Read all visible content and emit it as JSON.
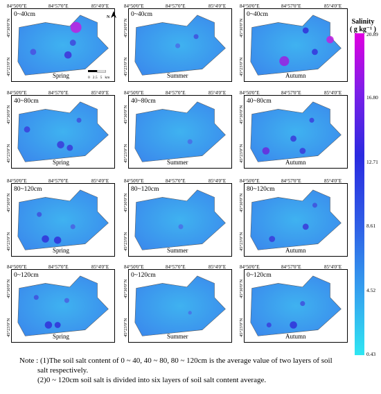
{
  "coord_labels": {
    "lon_left": "84°50'0\"E",
    "lon_mid": "84°57'0\"E",
    "lon_right": "85°4'0\"E",
    "lat_top": "45°30'0\"N",
    "lat_bottom": "45°23'0\"N"
  },
  "depths": [
    "0~40cm",
    "40~80cm",
    "80~120cm",
    "0~120cm"
  ],
  "seasons": [
    "Spring",
    "Summer",
    "Autumn"
  ],
  "north_arrow": "N",
  "scalebar": {
    "ticks": [
      "0",
      "2.5",
      "5"
    ],
    "unit": "km"
  },
  "legend": {
    "title": "Salinity",
    "unit": "( g kg⁻¹ )",
    "ticks": [
      "20.89",
      "16.80",
      "12.71",
      "8.61",
      "4.52",
      "0.43"
    ],
    "color_top": "#e000e0",
    "color_bottom": "#2fe6f2"
  },
  "note": {
    "line1": "Note : (1)The soil salt content of 0 ~ 40, 40 ~ 80, 80 ~ 120cm is the average value of two layers of soil",
    "line2": "salt respectively.",
    "line3": "(2)0 ~ 120cm soil salt is divided into six layers of soil salt content average."
  }
}
